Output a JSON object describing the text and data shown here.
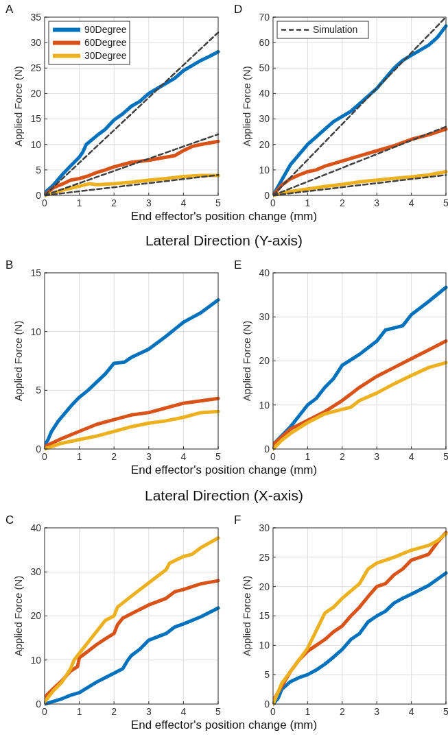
{
  "chart_data": [
    {
      "type": "line",
      "title": "A",
      "ylabel": "Applied Force (N)",
      "xlabel": "End effector's position change (mm)",
      "xlim": [
        0,
        5
      ],
      "xticks": [
        0,
        1,
        2,
        3,
        4,
        5
      ],
      "ylim": [
        0,
        35
      ],
      "yticks": [
        0,
        5,
        10,
        15,
        20,
        25,
        30,
        35
      ],
      "grid": true,
      "legend": "top left",
      "series": [
        {
          "name": "90Degree",
          "color": "#0072bd",
          "x": [
            0,
            0.25,
            0.5,
            0.75,
            1,
            1.1,
            1.2,
            1.5,
            1.75,
            2,
            2.25,
            2.5,
            2.75,
            3,
            3.25,
            3.5,
            3.75,
            4,
            4.25,
            4.5,
            4.75,
            5
          ],
          "values": [
            0.5,
            2,
            4,
            5.8,
            7.5,
            8.5,
            10,
            11.7,
            13,
            14.8,
            16,
            17.5,
            18.5,
            20,
            21,
            22,
            23,
            24.5,
            25.5,
            26.5,
            27.3,
            28.2
          ]
        },
        {
          "name": "60Degree",
          "color": "#d95319",
          "x": [
            0,
            0.25,
            0.5,
            0.75,
            1,
            1.25,
            1.5,
            1.75,
            2,
            2.5,
            3,
            3.5,
            3.75,
            4,
            4.25,
            4.5,
            5
          ],
          "values": [
            0,
            1.5,
            2.2,
            3,
            3.3,
            3.8,
            4.5,
            5,
            5.6,
            6.5,
            6.9,
            7.5,
            7.8,
            8.8,
            9.6,
            10,
            10.6
          ]
        },
        {
          "name": "30Degree",
          "color": "#edb120",
          "x": [
            0,
            0.5,
            1,
            1.3,
            1.5,
            2,
            2.5,
            3,
            3.5,
            4,
            4.5,
            5
          ],
          "values": [
            0,
            1,
            1.8,
            2.3,
            2.1,
            2.3,
            2.6,
            3,
            3.3,
            3.7,
            3.9,
            3.9
          ]
        },
        {
          "color": "#404040",
          "line_style": "dashed",
          "x": [
            0,
            5
          ],
          "values": [
            0,
            32
          ]
        },
        {
          "color": "#404040",
          "line_style": "dashed",
          "x": [
            0,
            5
          ],
          "values": [
            0,
            12
          ]
        },
        {
          "color": "#404040",
          "line_style": "dashed",
          "x": [
            0,
            5
          ],
          "values": [
            0,
            4
          ]
        }
      ]
    },
    {
      "type": "line",
      "title": "D",
      "ylabel": "Applied Force (N)",
      "xlim": [
        0,
        5
      ],
      "xticks": [
        0,
        1,
        2,
        3,
        4,
        5
      ],
      "ylim": [
        0,
        70
      ],
      "yticks": [
        0,
        10,
        20,
        30,
        40,
        50,
        60,
        70
      ],
      "grid": true,
      "legend": "top left",
      "series": [
        {
          "color": "#0072bd",
          "x": [
            0,
            0.25,
            0.5,
            0.75,
            1,
            1.25,
            1.5,
            1.75,
            2,
            2.25,
            2.5,
            2.75,
            3,
            3.25,
            3.5,
            3.75,
            4,
            4.5,
            4.75,
            5
          ],
          "values": [
            0,
            6,
            12,
            16,
            20,
            23,
            26,
            29,
            31,
            33,
            36,
            39,
            42,
            46,
            50,
            53,
            55,
            59,
            62,
            66.5
          ]
        },
        {
          "color": "#d95319",
          "x": [
            0,
            0.25,
            0.5,
            0.75,
            1,
            1.25,
            1.5,
            2,
            2.5,
            3,
            3.5,
            4,
            4.5,
            5
          ],
          "values": [
            0,
            4,
            6.5,
            8,
            9.3,
            10,
            11.5,
            13.5,
            15.5,
            17.5,
            19.5,
            22,
            23.8,
            26
          ]
        },
        {
          "color": "#edb120",
          "x": [
            0,
            0.5,
            1,
            1.5,
            2,
            2.5,
            3,
            3.5,
            4,
            4.5,
            5
          ],
          "values": [
            0,
            1.5,
            2.5,
            3.5,
            4.3,
            5.3,
            6,
            6.7,
            7.3,
            8,
            9.3
          ]
        },
        {
          "name": "Simulation",
          "color": "#404040",
          "line_style": "dashed",
          "x": [
            0,
            5
          ],
          "values": [
            0,
            70
          ]
        },
        {
          "color": "#404040",
          "line_style": "dashed",
          "x": [
            0,
            5
          ],
          "values": [
            0,
            27
          ]
        },
        {
          "color": "#404040",
          "line_style": "dashed",
          "x": [
            0,
            5
          ],
          "values": [
            0,
            8
          ]
        }
      ]
    },
    {
      "type": "line",
      "title": "B",
      "subtitle": "Lateral Direction (Y-axis)",
      "ylabel": "Applied Force (N)",
      "xlabel": "End effector's position change (mm)",
      "xlim": [
        0,
        5
      ],
      "xticks": [
        0,
        1,
        2,
        3,
        4,
        5
      ],
      "ylim": [
        0,
        15
      ],
      "yticks": [
        0,
        5,
        10,
        15
      ],
      "grid": true,
      "series": [
        {
          "color": "#0072bd",
          "x": [
            0,
            0.1,
            0.2,
            0.4,
            0.6,
            0.8,
            1,
            1.25,
            1.5,
            1.75,
            2,
            2.3,
            2.5,
            3,
            3.5,
            4,
            4.25,
            4.5,
            5
          ],
          "values": [
            0.3,
            0.8,
            1.5,
            2.4,
            3.1,
            3.8,
            4.4,
            5,
            5.7,
            6.4,
            7.3,
            7.4,
            7.8,
            8.5,
            9.6,
            10.8,
            11.2,
            11.6,
            12.7
          ]
        },
        {
          "color": "#d95319",
          "x": [
            0,
            0.5,
            1,
            1.5,
            2,
            2.5,
            3,
            3.5,
            4,
            4.5,
            5
          ],
          "values": [
            0.2,
            0.9,
            1.5,
            2.1,
            2.5,
            2.9,
            3.1,
            3.5,
            3.9,
            4.1,
            4.3
          ]
        },
        {
          "color": "#edb120",
          "x": [
            0,
            0.5,
            1,
            1.5,
            2,
            2.5,
            3,
            3.5,
            4,
            4.5,
            5
          ],
          "values": [
            0,
            0.5,
            0.8,
            1.1,
            1.5,
            1.9,
            2.2,
            2.4,
            2.7,
            3.1,
            3.2
          ]
        }
      ]
    },
    {
      "type": "line",
      "title": "E",
      "ylabel": "Applied Force (N)",
      "xlim": [
        0,
        5
      ],
      "xticks": [
        0,
        1,
        2,
        3,
        4,
        5
      ],
      "ylim": [
        0,
        40
      ],
      "yticks": [
        0,
        10,
        20,
        30,
        40
      ],
      "grid": true,
      "series": [
        {
          "color": "#0072bd",
          "x": [
            0,
            0.5,
            0.75,
            1,
            1.25,
            1.5,
            1.75,
            2,
            2.5,
            3,
            3.25,
            3.5,
            3.75,
            4,
            4.5,
            5
          ],
          "values": [
            1,
            5,
            7.5,
            10,
            11.5,
            14,
            16,
            19,
            21.5,
            24.5,
            27,
            27.5,
            28,
            30.5,
            33.5,
            36.7
          ]
        },
        {
          "color": "#d95319",
          "x": [
            0,
            0.5,
            1,
            1.5,
            2,
            2.5,
            3,
            3.5,
            4,
            4.5,
            5
          ],
          "values": [
            1,
            4.5,
            6.5,
            8.5,
            11,
            14,
            16.5,
            18.5,
            20.5,
            22.5,
            24.5
          ]
        },
        {
          "color": "#edb120",
          "x": [
            0,
            0.25,
            0.5,
            1,
            1.5,
            2,
            2.25,
            2.5,
            3,
            3.5,
            4,
            4.5,
            5
          ],
          "values": [
            0,
            2,
            3.5,
            6,
            8,
            9,
            9.5,
            11,
            12.7,
            14.8,
            16.7,
            18.5,
            19.6
          ]
        }
      ]
    },
    {
      "type": "line",
      "title": "C",
      "subtitle": "Lateral Direction (X-axis)",
      "ylabel": "Applied Force (N)",
      "xlabel": "End effector's position change (mm)",
      "xlim": [
        0,
        5
      ],
      "xticks": [
        0,
        1,
        2,
        3,
        4,
        5
      ],
      "ylim": [
        0,
        40
      ],
      "yticks": [
        0,
        10,
        20,
        30,
        40
      ],
      "grid": true,
      "series": [
        {
          "color": "#0072bd",
          "x": [
            0,
            0.5,
            0.75,
            1,
            1.5,
            1.75,
            2,
            2.25,
            2.4,
            2.5,
            2.75,
            3,
            3.5,
            3.75,
            4,
            4.5,
            5
          ],
          "values": [
            0,
            1.2,
            2,
            2.6,
            5,
            6,
            7,
            8,
            10,
            11,
            12.5,
            14.5,
            16,
            17.5,
            18.2,
            19.8,
            21.8
          ]
        },
        {
          "color": "#d95319",
          "x": [
            0,
            0.25,
            0.5,
            0.75,
            0.95,
            1,
            1.25,
            1.5,
            1.75,
            2,
            2.1,
            2.25,
            2.5,
            3,
            3.5,
            3.75,
            4,
            4.5,
            5
          ],
          "values": [
            1.5,
            3.5,
            5.3,
            7.5,
            8.5,
            10.5,
            12,
            13.5,
            14.8,
            16,
            18,
            19.5,
            20.5,
            22.5,
            24,
            25.5,
            26,
            27.3,
            28
          ]
        },
        {
          "color": "#edb120",
          "x": [
            0,
            0.25,
            0.5,
            0.75,
            0.85,
            1,
            1.25,
            1.5,
            1.75,
            2,
            2.1,
            2.5,
            3,
            3.5,
            3.6,
            4,
            4.25,
            4.5,
            5
          ],
          "values": [
            0.5,
            3,
            5,
            8,
            10,
            11.5,
            14,
            16.5,
            19,
            20,
            22,
            24.5,
            27.5,
            30.5,
            32,
            33.5,
            34,
            35.5,
            37.7
          ]
        }
      ]
    },
    {
      "type": "line",
      "title": "F",
      "ylabel": "Applied Force (N)",
      "xlim": [
        0,
        5
      ],
      "xticks": [
        0,
        1,
        2,
        3,
        4,
        5
      ],
      "ylim": [
        0,
        30
      ],
      "yticks": [
        0,
        5,
        10,
        15,
        20,
        25,
        30
      ],
      "grid": true,
      "series": [
        {
          "color": "#0072bd",
          "x": [
            0,
            0.15,
            0.25,
            0.5,
            0.75,
            1,
            1.25,
            1.5,
            1.75,
            2,
            2.25,
            2.5,
            2.75,
            3,
            3.25,
            3.5,
            3.75,
            4,
            4.5,
            5
          ],
          "values": [
            0,
            1,
            2.5,
            3.8,
            4.5,
            5,
            5.8,
            6.8,
            8,
            9.3,
            11,
            12,
            14,
            15,
            15.8,
            17.2,
            18,
            18.7,
            20.2,
            22.3
          ]
        },
        {
          "color": "#d95319",
          "x": [
            0,
            0.25,
            0.5,
            0.75,
            1,
            1.25,
            1.5,
            1.75,
            2,
            2.25,
            2.5,
            2.75,
            3,
            3.25,
            3.5,
            3.75,
            4,
            4.5,
            4.75,
            5
          ],
          "values": [
            0.5,
            3,
            5.5,
            7.5,
            9,
            10,
            11,
            12.3,
            13.3,
            15,
            16.5,
            18.3,
            20,
            20.5,
            22,
            23,
            24.5,
            25.5,
            27.5,
            29.2
          ]
        },
        {
          "color": "#edb120",
          "x": [
            0,
            0.25,
            0.5,
            0.75,
            1,
            1.25,
            1.5,
            1.75,
            2,
            2.5,
            2.75,
            3,
            3.5,
            4,
            4.5,
            4.75,
            5
          ],
          "values": [
            0,
            3.5,
            5.5,
            7.5,
            9.5,
            12.5,
            15.5,
            16.5,
            18,
            20.5,
            23,
            24,
            25,
            26.2,
            27,
            27.8,
            29
          ]
        }
      ]
    }
  ]
}
